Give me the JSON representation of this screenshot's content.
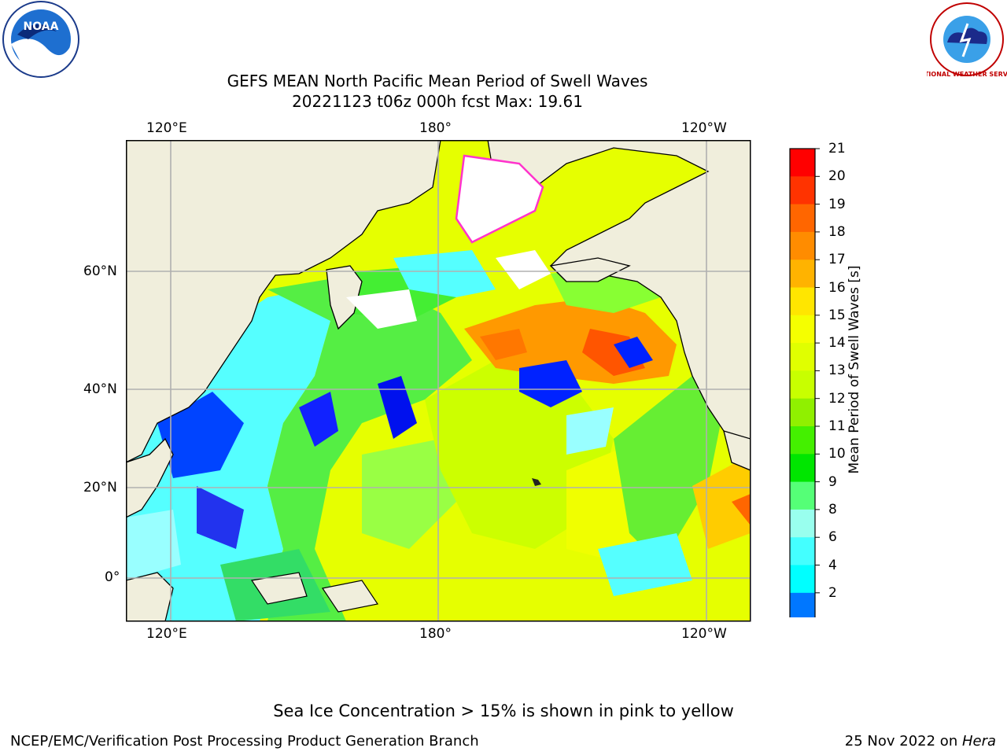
{
  "title_line1": "GEFS MEAN North Pacific Mean Period of Swell Waves",
  "title_line2": "20221123 t06z 000h fcst   Max: 19.61",
  "logos": {
    "left": "NOAA",
    "right": "NATIONAL WEATHER SERVICE"
  },
  "map": {
    "top_lon_labels": [
      "120°E",
      "180°",
      "120°W"
    ],
    "bottom_lon_labels": [
      "120°E",
      "180°",
      "120°W"
    ],
    "lat_labels": [
      "60°N",
      "40°N",
      "20°N",
      "0°"
    ]
  },
  "colorbar": {
    "label": "Mean Period of Swell Waves [s]",
    "ticks": [
      "21",
      "20",
      "19",
      "18",
      "17",
      "16",
      "15",
      "14",
      "13",
      "12",
      "11",
      "10",
      "9",
      "8",
      "6",
      "4",
      "2"
    ],
    "colors": [
      "#ff0000",
      "#ff3300",
      "#ff6600",
      "#ff8c00",
      "#ffb300",
      "#ffe600",
      "#f5ff00",
      "#e0ff00",
      "#c8ff00",
      "#90f000",
      "#44f000",
      "#00e600",
      "#55ff77",
      "#99ffee",
      "#44ffff",
      "#00ffff",
      "#0077ff"
    ],
    "extend_color": "#0000ff"
  },
  "footer": {
    "note": "Sea Ice Concentration > 15% is shown in pink to yellow",
    "left": "NCEP/EMC/Verification Post Processing Product Generation Branch",
    "right_date": "25 Nov 2022 on ",
    "right_host": "Hera"
  }
}
